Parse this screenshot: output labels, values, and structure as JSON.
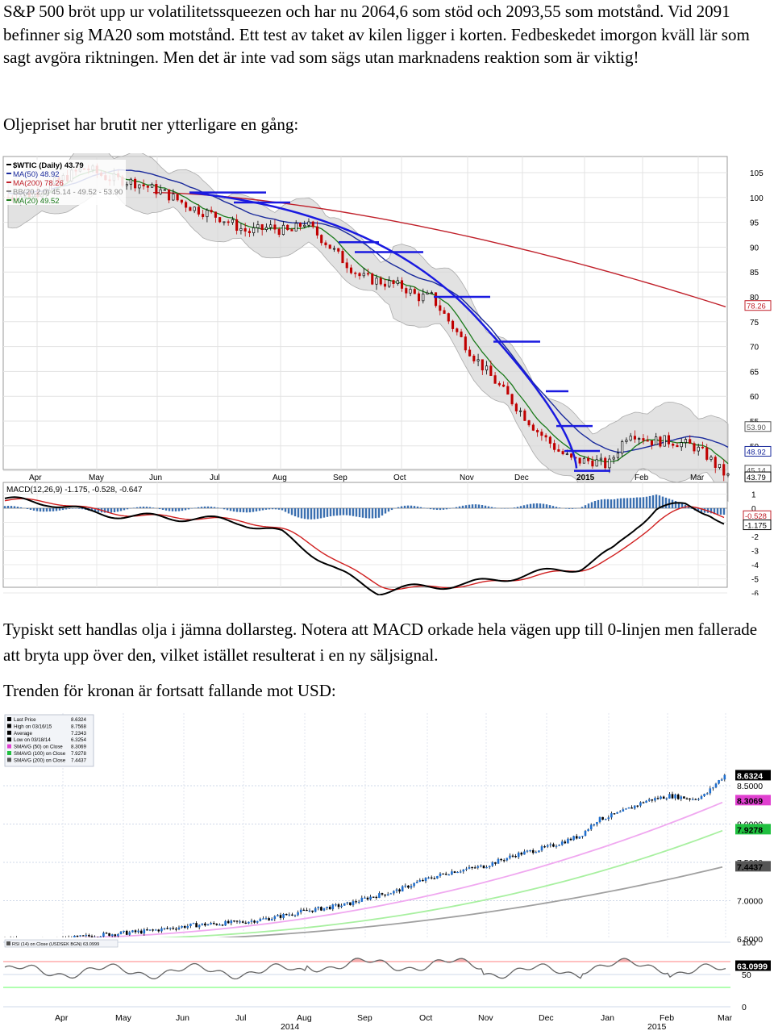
{
  "text": {
    "p1": "S&P 500 bröt upp ur volatilitetssqueezen och har nu 2064,6 som stöd och 2093,55 som motstånd. Vid 2091 befinner sig MA20 som motstånd. Ett test av taket av kilen ligger i korten. Fedbeskedet imorgon kväll lär som sagt avgöra riktningen. Men det är inte vad som sägs utan marknadens reaktion som är viktig!",
    "p2": "Oljepriset har brutit ner ytterligare en gång:",
    "p3": "Typiskt sett handlas olja i jämna dollarsteg. Notera att MACD orkade hela vägen upp till 0-linjen men fallerade att bryta upp över den, vilket istället resulterat i en ny säljsignal.",
    "p4": "Trenden för kronan är fortsatt fallande mot USD:"
  },
  "oil_chart": {
    "legend": [
      {
        "label": "$WTIC (Daily) 43.79",
        "color": "#000000"
      },
      {
        "label": "MA(50) 48.92",
        "color": "#1a2a9c"
      },
      {
        "label": "MA(200) 78.26",
        "color": "#c0202a"
      },
      {
        "label": "BB(20,2.0) 45.14 - 49.52 - 53.90",
        "color": "#888888"
      },
      {
        "label": "MA(20) 49.52",
        "color": "#1a7a1a"
      }
    ],
    "price_ticks": [
      "105",
      "100",
      "95",
      "90",
      "85",
      "80",
      "75",
      "70",
      "65",
      "60",
      "55",
      "50",
      "45"
    ],
    "value_tags": [
      {
        "label": "78.26",
        "color": "#c0202a",
        "value": 78.26
      },
      {
        "label": "53.90",
        "color": "#555555",
        "value": 53.9
      },
      {
        "label": "48.92",
        "color": "#1a2a9c",
        "value": 48.92
      },
      {
        "label": "45.14",
        "color": "#555555",
        "value": 45.14
      },
      {
        "label": "43.79",
        "color": "#000000",
        "value": 43.79
      }
    ],
    "months": [
      "Apr",
      "May",
      "Jun",
      "Jul",
      "Aug",
      "Sep",
      "Oct",
      "Nov",
      "Dec",
      "2015",
      "Feb",
      "Mar"
    ],
    "macd_legend": {
      "label": "MACD(12,26,9) -1.175, -0.528, -0.647",
      "c1": "#000000",
      "c2": "#c0202a",
      "c3": "#2060b0"
    },
    "macd_ticks": [
      "1",
      "0",
      "-1",
      "-2",
      "-3",
      "-4",
      "-5",
      "-6"
    ],
    "macd_tags": [
      {
        "label": "-0.528",
        "color": "#c0202a",
        "value": -0.528
      },
      {
        "label": "-1.175",
        "color": "#000000",
        "value": -1.175
      }
    ]
  },
  "sek_chart": {
    "legend": [
      {
        "label": "Last Price",
        "value": "8.6324"
      },
      {
        "label": "High on 03/16/15",
        "value": "8.7568"
      },
      {
        "label": "Average",
        "value": "7.2343"
      },
      {
        "label": "Low on 03/18/14",
        "value": "6.3254"
      },
      {
        "label": "SMAVG (50) on Close",
        "value": "8.3069"
      },
      {
        "label": "SMAVG (100) on Close",
        "value": "7.9278"
      },
      {
        "label": "SMAVG (200) on Close",
        "value": "7.4437"
      }
    ],
    "price_ticks": [
      "8.5000",
      "8.0000",
      "7.5000",
      "7.0000",
      "6.5000"
    ],
    "value_tags": [
      {
        "label": "8.6324",
        "color": "#000000",
        "value": 8.6324
      },
      {
        "label": "8.3069",
        "color": "#e040d0",
        "value": 8.3069
      },
      {
        "label": "7.9278",
        "color": "#20c040",
        "value": 7.9278
      },
      {
        "label": "7.4437",
        "color": "#555555",
        "value": 7.4437
      }
    ],
    "months": [
      "Apr",
      "May",
      "Jun",
      "Jul",
      "Aug",
      "Sep",
      "Oct",
      "Nov",
      "Dec",
      "Jan",
      "Feb",
      "Mar"
    ],
    "years": [
      "2014",
      "2015"
    ],
    "rsi_legend": "RSI (14) on Close (USDSEK BGN) 63.0999",
    "rsi_ticks": [
      "100",
      "50",
      "0"
    ],
    "rsi_tag": "63.0999"
  }
}
